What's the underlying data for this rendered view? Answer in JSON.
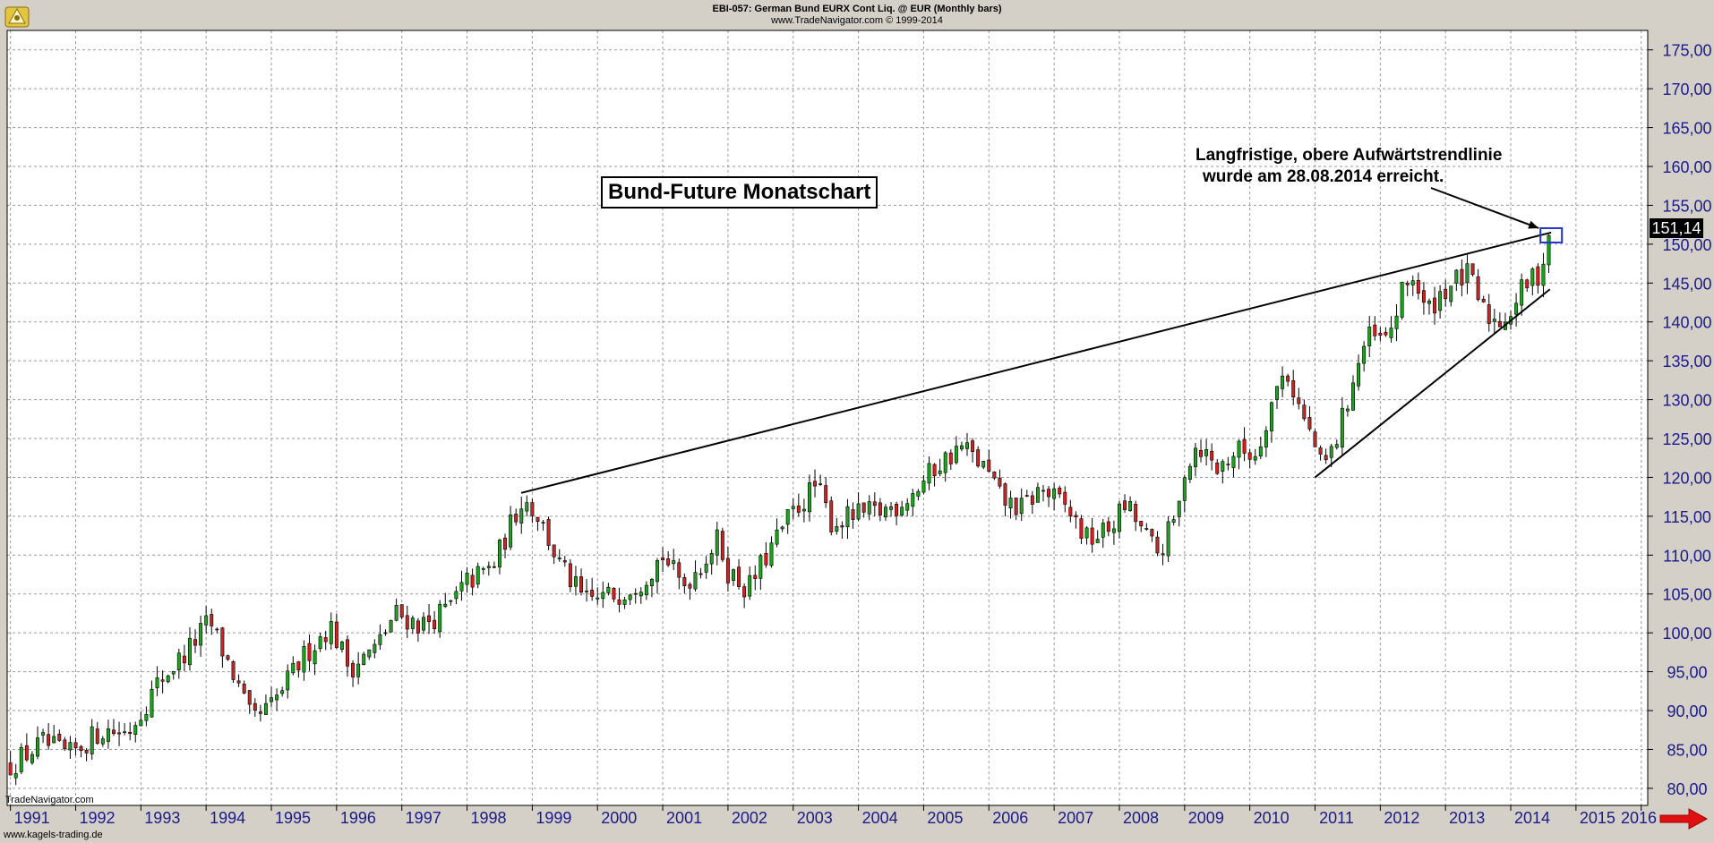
{
  "header": {
    "title": "EBI-057:  German Bund EURX Cont Liq. @ EUR  (Monthly bars)",
    "subtitle": "www.TradeNavigator.com © 1999-2014"
  },
  "credits": {
    "tradenavigator": "TradeNavigator.com",
    "website": "www.kagels-trading.de"
  },
  "icons": {
    "logo": "trade-navigator-logo-icon",
    "nav_arrow": "red-right-arrow-icon"
  },
  "colors": {
    "up_candle": "#1fa21f",
    "down_candle": "#d62020",
    "grid": "#9a9a9a",
    "axis_text": "#1a1a8c",
    "highlight_box": "#2233cc"
  },
  "chart_data": {
    "type": "candlestick",
    "title": "Bund-Future Monatschart",
    "annotation": [
      "Langfristige, obere Aufwärtstrendlinie",
      "wurde am 28.08.2014 erreicht."
    ],
    "last_price_label": "151,14",
    "x_tick_labels": [
      "1991",
      "1992",
      "1993",
      "1994",
      "1995",
      "1996",
      "1997",
      "1998",
      "1999",
      "2000",
      "2001",
      "2002",
      "2003",
      "2004",
      "2005",
      "2006",
      "2007",
      "2008",
      "2009",
      "2010",
      "2011",
      "2012",
      "2013",
      "2014",
      "2015",
      "2016"
    ],
    "xlim": [
      1990.95,
      2016.1
    ],
    "y_tick_labels": [
      "80,00",
      "85,00",
      "90,00",
      "95,00",
      "100,00",
      "105,00",
      "110,00",
      "115,00",
      "120,00",
      "125,00",
      "130,00",
      "135,00",
      "140,00",
      "145,00",
      "150,00",
      "155,00",
      "160,00",
      "165,00",
      "170,00",
      "175,00"
    ],
    "y_ticks": [
      80,
      85,
      90,
      95,
      100,
      105,
      110,
      115,
      120,
      125,
      130,
      135,
      140,
      145,
      150,
      155,
      160,
      165,
      170,
      175
    ],
    "ylim": [
      77.8,
      177.5
    ],
    "grid": true,
    "price_path": [
      [
        1991.0,
        83.0
      ],
      [
        1991.5,
        85.8
      ],
      [
        1991.9,
        84.2
      ],
      [
        1992.4,
        87.5
      ],
      [
        1992.8,
        87.2
      ],
      [
        1993.3,
        94.0
      ],
      [
        1993.7,
        97.5
      ],
      [
        1994.05,
        101.5
      ],
      [
        1994.4,
        95.0
      ],
      [
        1994.7,
        88.5
      ],
      [
        1995.0,
        90.5
      ],
      [
        1995.5,
        97.0
      ],
      [
        1995.9,
        101.0
      ],
      [
        1996.2,
        95.5
      ],
      [
        1996.6,
        98.0
      ],
      [
        1996.9,
        102.5
      ],
      [
        1997.3,
        101.0
      ],
      [
        1997.7,
        103.0
      ],
      [
        1998.0,
        106.5
      ],
      [
        1998.4,
        108.5
      ],
      [
        1998.85,
        117.5
      ],
      [
        1999.1,
        115.0
      ],
      [
        1999.4,
        109.0
      ],
      [
        1999.8,
        104.0
      ],
      [
        2000.3,
        105.0
      ],
      [
        2000.7,
        107.0
      ],
      [
        2001.0,
        110.0
      ],
      [
        2001.3,
        106.0
      ],
      [
        2001.6,
        109.0
      ],
      [
        2001.85,
        112.0
      ],
      [
        2002.0,
        108.0
      ],
      [
        2002.3,
        105.5
      ],
      [
        2002.6,
        110.0
      ],
      [
        2002.95,
        115.0
      ],
      [
        2003.35,
        119.0
      ],
      [
        2003.6,
        114.0
      ],
      [
        2003.9,
        115.0
      ],
      [
        2004.3,
        115.5
      ],
      [
        2004.6,
        116.5
      ],
      [
        2004.9,
        118.5
      ],
      [
        2005.2,
        121.5
      ],
      [
        2005.6,
        124.0
      ],
      [
        2005.95,
        121.0
      ],
      [
        2006.2,
        117.0
      ],
      [
        2006.5,
        116.0
      ],
      [
        2006.8,
        118.5
      ],
      [
        2007.2,
        116.0
      ],
      [
        2007.5,
        112.0
      ],
      [
        2007.8,
        113.0
      ],
      [
        2008.1,
        116.5
      ],
      [
        2008.4,
        112.5
      ],
      [
        2008.6,
        110.0
      ],
      [
        2008.9,
        115.5
      ],
      [
        2009.0,
        121.0
      ],
      [
        2009.2,
        124.5
      ],
      [
        2009.5,
        121.0
      ],
      [
        2009.8,
        123.5
      ],
      [
        2010.1,
        123.0
      ],
      [
        2010.3,
        129.0
      ],
      [
        2010.55,
        134.0
      ],
      [
        2010.8,
        128.0
      ],
      [
        2011.0,
        124.0
      ],
      [
        2011.1,
        121.0
      ],
      [
        2011.3,
        124.0
      ],
      [
        2011.6,
        133.0
      ],
      [
        2011.8,
        138.0
      ],
      [
        2012.1,
        137.5
      ],
      [
        2012.35,
        144.0
      ],
      [
        2012.5,
        146.0
      ],
      [
        2012.7,
        141.0
      ],
      [
        2012.9,
        143.5
      ],
      [
        2013.1,
        145.0
      ],
      [
        2013.35,
        146.0
      ],
      [
        2013.6,
        141.0
      ],
      [
        2013.8,
        140.0
      ],
      [
        2014.0,
        141.5
      ],
      [
        2014.2,
        144.5
      ],
      [
        2014.45,
        146.5
      ],
      [
        2014.62,
        151.14
      ]
    ],
    "trendlines": [
      {
        "from": [
          1998.83,
          118.0
        ],
        "to": [
          2014.62,
          151.5
        ]
      },
      {
        "from": [
          2011.0,
          120.0
        ],
        "to": [
          2014.6,
          144.2
        ]
      }
    ]
  }
}
